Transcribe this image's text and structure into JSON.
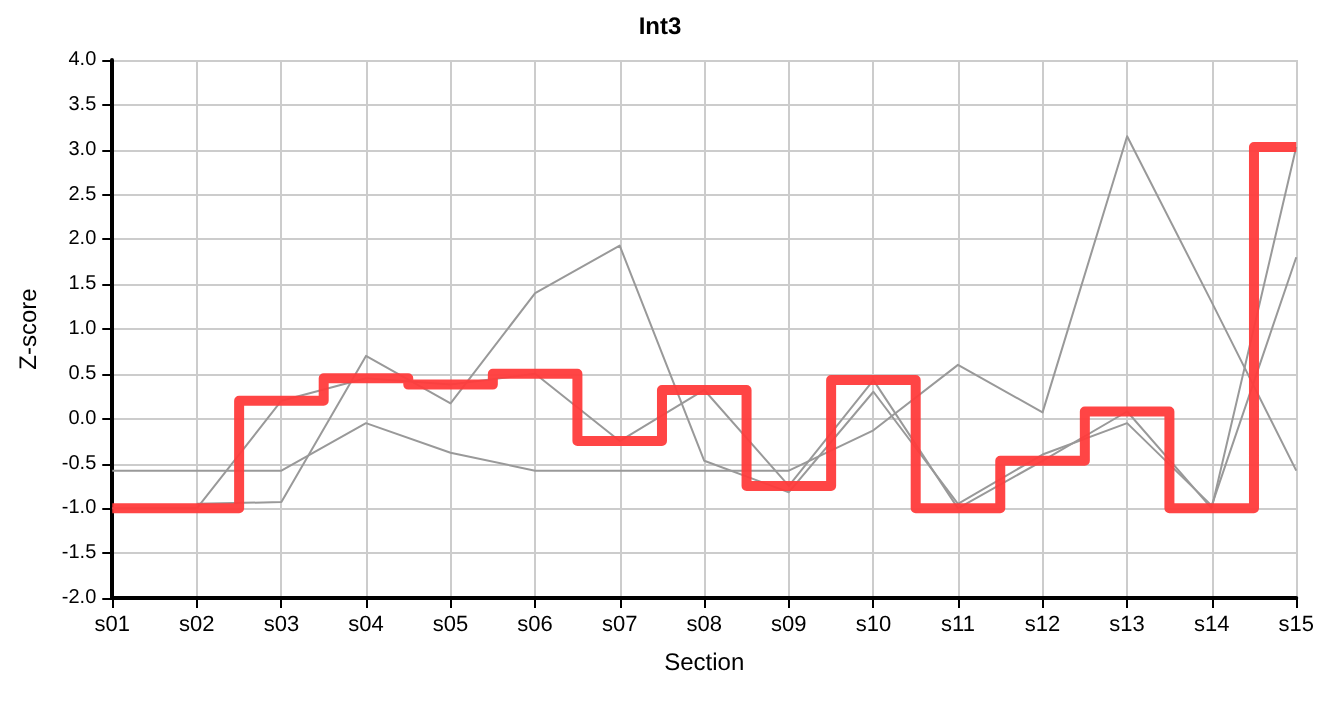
{
  "chart_data": {
    "type": "line",
    "title": "Int3",
    "xlabel": "Section",
    "ylabel": "Z-score",
    "categories": [
      "s01",
      "s02",
      "s03",
      "s04",
      "s05",
      "s06",
      "s07",
      "s08",
      "s09",
      "s10",
      "s11",
      "s12",
      "s13",
      "s14",
      "s15"
    ],
    "series": [
      {
        "color": "#999999",
        "values": [
          -0.58,
          -0.58,
          -0.58,
          -0.05,
          -0.38,
          -0.58,
          -0.58,
          -0.58,
          -0.58,
          -0.13,
          0.6,
          0.07,
          3.15,
          1.3,
          -0.58
        ]
      },
      {
        "color": "#999999",
        "values": [
          null,
          -0.95,
          -0.93,
          0.7,
          0.17,
          1.4,
          1.93,
          -0.47,
          -0.82,
          0.3,
          -0.95,
          -0.4,
          -0.05,
          -0.97,
          1.8
        ]
      },
      {
        "color": "#999999",
        "values": [
          -1.0,
          -1.0,
          0.2,
          0.45,
          0.38,
          0.5,
          -0.25,
          0.32,
          -0.75,
          0.43,
          -1.0,
          -0.47,
          0.08,
          -1.0,
          3.03
        ]
      },
      {
        "type": "step",
        "color": "#ff3b3b",
        "values": [
          -1.0,
          -1.0,
          0.2,
          0.45,
          0.38,
          0.5,
          -0.25,
          0.32,
          -0.75,
          0.43,
          -1.0,
          -0.47,
          0.08,
          -1.0,
          3.03
        ]
      }
    ],
    "ylim": [
      -2.0,
      4.0
    ],
    "yticks": [
      {
        "value": -2,
        "label": "-2.0"
      },
      {
        "value": -1.5,
        "label": "-1.5"
      },
      {
        "value": -1,
        "label": "-1.0"
      },
      {
        "value": -0.5,
        "label": "-0.5"
      },
      {
        "value": 0,
        "label": "0.0"
      },
      {
        "value": 0.5,
        "label": "0.5"
      },
      {
        "value": 1,
        "label": "1.0"
      },
      {
        "value": 1.5,
        "label": "1.5"
      },
      {
        "value": 2,
        "label": "2.0"
      },
      {
        "value": 2.5,
        "label": "2.5"
      },
      {
        "value": 3,
        "label": "3.0"
      },
      {
        "value": 3.5,
        "label": "3.5"
      },
      {
        "value": 4,
        "label": "4.0"
      }
    ],
    "grid": true,
    "marker": "none",
    "line_style": "solid"
  }
}
